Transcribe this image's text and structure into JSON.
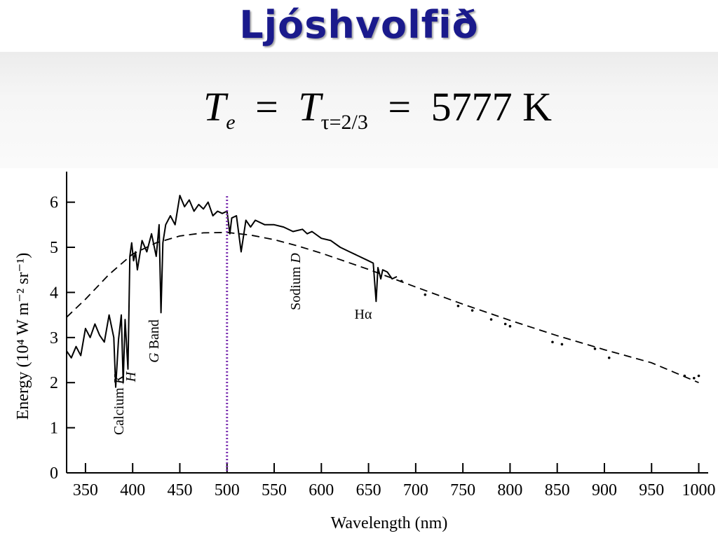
{
  "slide": {
    "title": "Ljóshvolfið",
    "formula": {
      "lhs_symbol": "T",
      "lhs_sub": "e",
      "equals": "=",
      "mid_symbol": "T",
      "mid_sub": "τ=2/3",
      "value": "5777",
      "unit": "K"
    }
  },
  "chart_data": {
    "type": "line",
    "xlabel": "Wavelength (nm)",
    "ylabel": "Energy (10⁴ W m⁻² sr⁻¹)",
    "xlim": [
      330,
      1010
    ],
    "ylim": [
      0,
      6.6
    ],
    "x_ticks": [
      350,
      400,
      450,
      500,
      550,
      600,
      650,
      700,
      750,
      800,
      850,
      900,
      950,
      1000
    ],
    "y_ticks": [
      0,
      1,
      2,
      3,
      4,
      5,
      6
    ],
    "grid": false,
    "marker_line": {
      "x": 500,
      "color": "#7a2fb0",
      "style": "dotted"
    },
    "series": [
      {
        "style": "solid",
        "x": [
          330,
          335,
          340,
          345,
          350,
          355,
          360,
          365,
          370,
          375,
          380,
          382,
          385,
          388,
          390,
          392,
          395,
          397,
          399,
          401,
          403,
          405,
          410,
          415,
          420,
          425,
          428,
          430,
          432,
          435,
          440,
          445,
          450,
          455,
          460,
          465,
          470,
          475,
          480,
          485,
          490,
          495,
          500,
          503,
          505,
          510,
          515,
          520,
          525,
          530,
          540,
          550,
          560,
          570,
          580,
          585,
          590,
          600,
          610,
          620,
          630,
          640,
          650,
          655,
          658,
          660,
          663,
          665,
          670,
          675,
          680
        ],
        "y": [
          2.7,
          2.55,
          2.8,
          2.6,
          3.2,
          3.0,
          3.3,
          3.05,
          2.9,
          3.5,
          3.0,
          1.9,
          2.95,
          3.5,
          2.0,
          3.4,
          2.3,
          4.8,
          5.1,
          4.7,
          4.9,
          4.5,
          5.15,
          4.9,
          5.3,
          4.8,
          5.5,
          3.55,
          5.1,
          5.5,
          5.7,
          5.5,
          6.15,
          5.9,
          6.05,
          5.8,
          5.95,
          5.85,
          6.0,
          5.7,
          5.8,
          5.75,
          5.8,
          5.3,
          5.65,
          5.7,
          4.9,
          5.6,
          5.45,
          5.6,
          5.5,
          5.5,
          5.45,
          5.35,
          5.4,
          5.3,
          5.35,
          5.2,
          5.15,
          5.0,
          4.9,
          4.8,
          4.7,
          4.65,
          3.8,
          4.55,
          4.3,
          4.5,
          4.45,
          4.3,
          4.35
        ]
      },
      {
        "style": "dashed",
        "x": [
          330,
          350,
          375,
          400,
          425,
          450,
          475,
          500,
          525,
          550,
          575,
          600,
          650,
          700,
          750,
          800,
          850,
          900,
          950,
          1000
        ],
        "y": [
          3.45,
          3.85,
          4.4,
          4.85,
          5.1,
          5.25,
          5.32,
          5.33,
          5.27,
          5.17,
          5.03,
          4.87,
          4.51,
          4.12,
          3.74,
          3.38,
          3.04,
          2.73,
          2.44,
          2.0
        ]
      },
      {
        "style": "dots",
        "x": [
          685,
          710,
          745,
          760,
          780,
          795,
          800,
          845,
          855,
          890,
          905,
          985,
          995,
          1000
        ],
        "y": [
          4.25,
          3.95,
          3.7,
          3.6,
          3.4,
          3.3,
          3.25,
          2.9,
          2.85,
          2.75,
          2.55,
          2.15,
          2.1,
          2.15
        ]
      }
    ],
    "annotations": [
      {
        "text": "Calcium K",
        "x": 395
      },
      {
        "text": "H",
        "x": 400
      },
      {
        "text": "G Band",
        "x": 430
      },
      {
        "text": "Sodium D",
        "x": 589
      },
      {
        "text": "Hα",
        "x": 656
      }
    ]
  }
}
